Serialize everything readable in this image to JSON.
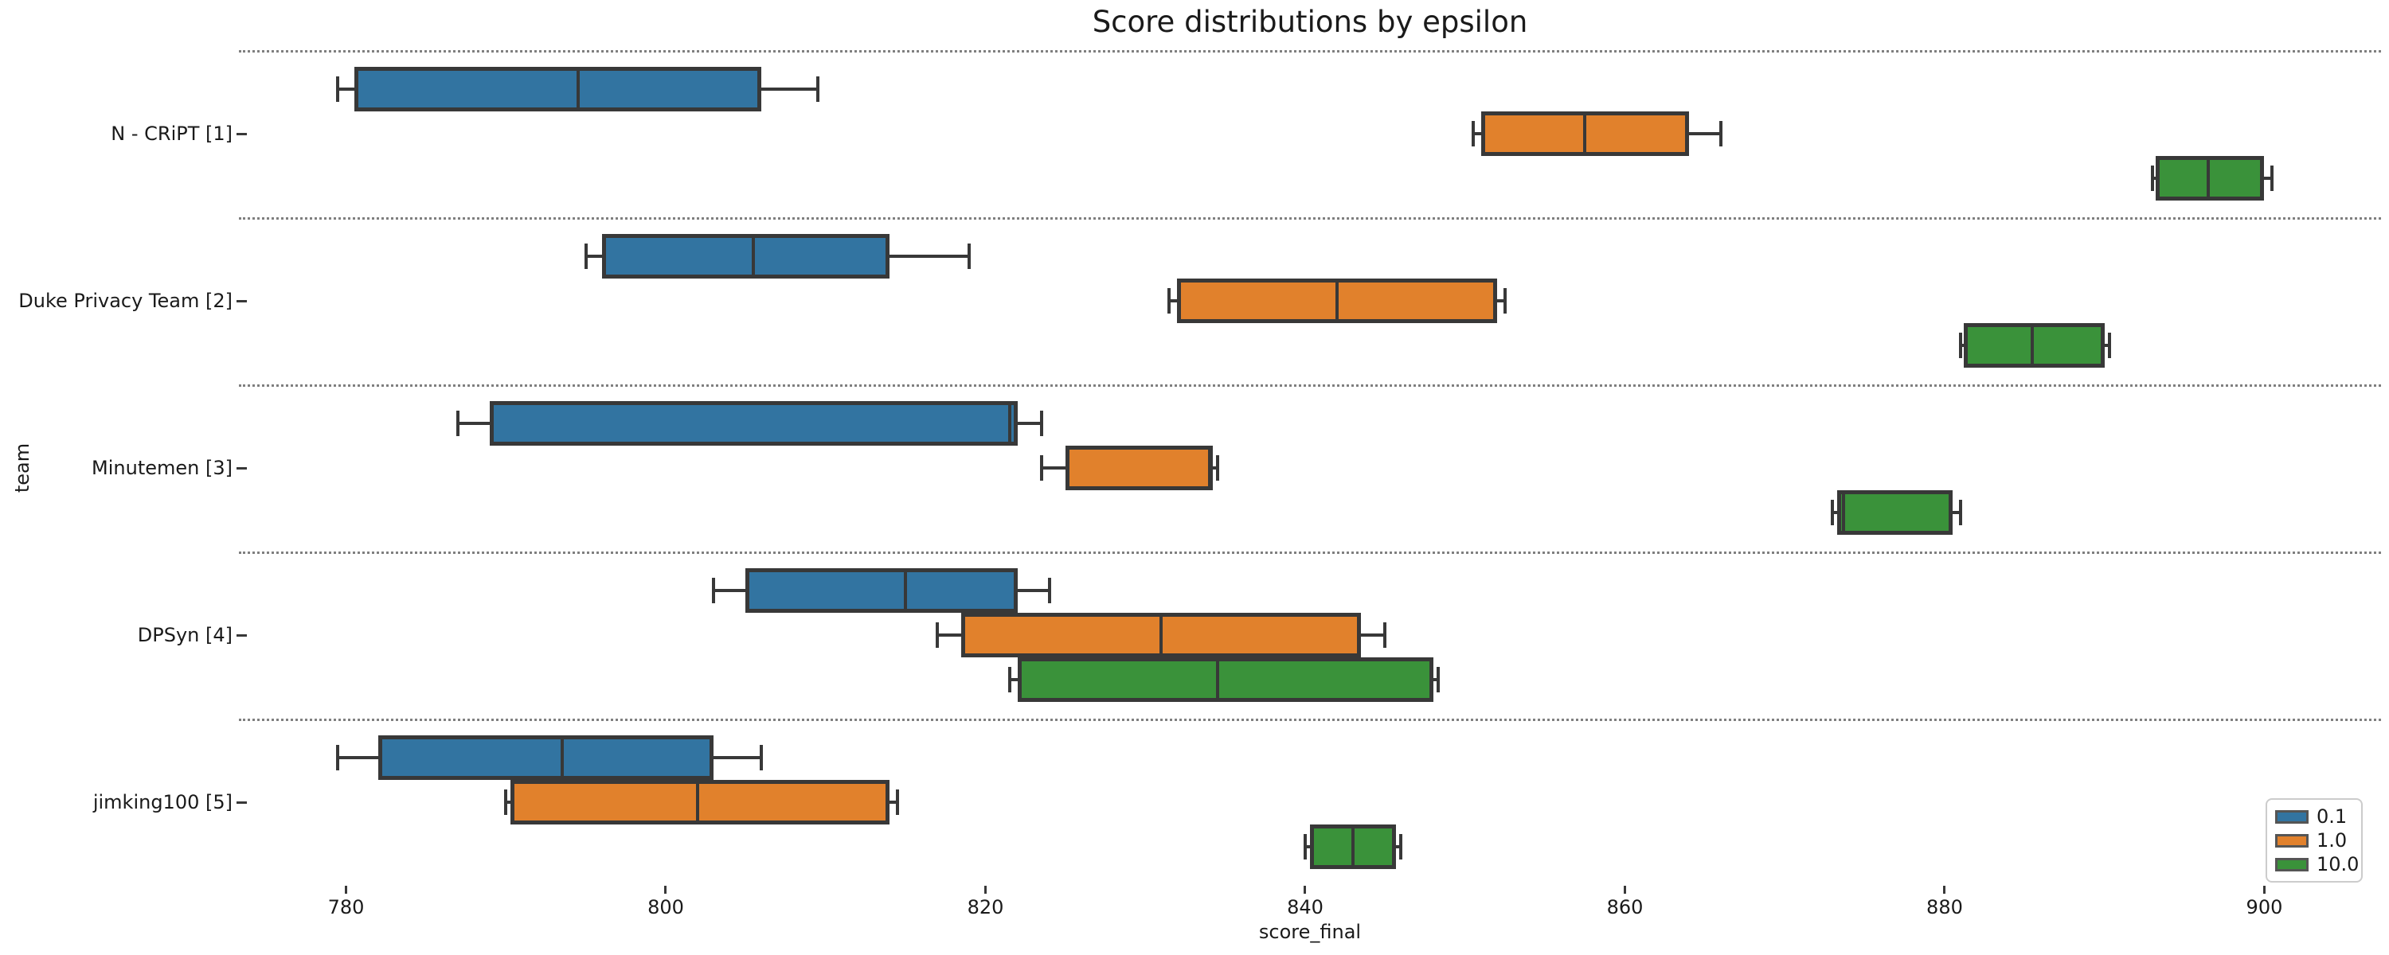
{
  "figure": {
    "title": "Score distributions by epsilon",
    "xlabel": "score_final",
    "ylabel": "team"
  },
  "chart_data": {
    "type": "boxplot",
    "orientation": "horizontal",
    "title": "Score distributions by epsilon",
    "xlabel": "score_final",
    "ylabel": "team",
    "xlim": [
      773.3,
      907.3
    ],
    "x_ticks": [
      780,
      800,
      820,
      840,
      860,
      880,
      900
    ],
    "grid": "dotted horizontal group separators",
    "legend_position": "lower right",
    "hue_variable": "epsilon",
    "series": [
      {
        "name": "0.1",
        "color": "#3274a1"
      },
      {
        "name": "1.0",
        "color": "#e1812c"
      },
      {
        "name": "10.0",
        "color": "#3a923a"
      }
    ],
    "teams": [
      {
        "team": "N - CRiPT [1]",
        "boxes": [
          {
            "epsilon": "0.1",
            "whislo": 779.5,
            "q1": 780.5,
            "med": 794.5,
            "q3": 806.0,
            "whishi": 809.5
          },
          {
            "epsilon": "1.0",
            "whislo": 850.5,
            "q1": 851.0,
            "med": 857.5,
            "q3": 864.0,
            "whishi": 866.0
          },
          {
            "epsilon": "10.0",
            "whislo": 893.0,
            "q1": 893.2,
            "med": 896.5,
            "q3": 900.0,
            "whishi": 900.5
          }
        ]
      },
      {
        "team": "Duke Privacy Team [2]",
        "boxes": [
          {
            "epsilon": "0.1",
            "whislo": 795.0,
            "q1": 796.0,
            "med": 805.5,
            "q3": 814.0,
            "whishi": 819.0
          },
          {
            "epsilon": "1.0",
            "whislo": 831.5,
            "q1": 832.0,
            "med": 842.0,
            "q3": 852.0,
            "whishi": 852.5
          },
          {
            "epsilon": "10.0",
            "whislo": 881.0,
            "q1": 881.2,
            "med": 885.5,
            "q3": 890.0,
            "whishi": 890.3
          }
        ]
      },
      {
        "team": "Minutemen [3]",
        "boxes": [
          {
            "epsilon": "0.1",
            "whislo": 787.0,
            "q1": 789.0,
            "med": 821.5,
            "q3": 822.0,
            "whishi": 823.5
          },
          {
            "epsilon": "1.0",
            "whislo": 823.5,
            "q1": 825.0,
            "med": 834.0,
            "q3": 834.2,
            "whishi": 834.5
          },
          {
            "epsilon": "10.0",
            "whislo": 873.0,
            "q1": 873.3,
            "med": 873.7,
            "q3": 880.5,
            "whishi": 881.0
          }
        ]
      },
      {
        "team": "DPSyn [4]",
        "boxes": [
          {
            "epsilon": "0.1",
            "whislo": 803.0,
            "q1": 805.0,
            "med": 815.0,
            "q3": 822.0,
            "whishi": 824.0
          },
          {
            "epsilon": "1.0",
            "whislo": 817.0,
            "q1": 818.5,
            "med": 831.0,
            "q3": 843.5,
            "whishi": 845.0
          },
          {
            "epsilon": "10.0",
            "whislo": 821.5,
            "q1": 822.0,
            "med": 834.5,
            "q3": 848.0,
            "whishi": 848.3
          }
        ]
      },
      {
        "team": "jimking100 [5]",
        "boxes": [
          {
            "epsilon": "0.1",
            "whislo": 779.5,
            "q1": 782.0,
            "med": 793.5,
            "q3": 803.0,
            "whishi": 806.0
          },
          {
            "epsilon": "1.0",
            "whislo": 790.0,
            "q1": 790.3,
            "med": 802.0,
            "q3": 814.0,
            "whishi": 814.5
          },
          {
            "epsilon": "10.0",
            "whislo": 840.0,
            "q1": 840.3,
            "med": 843.0,
            "q3": 845.7,
            "whishi": 846.0
          }
        ]
      }
    ]
  }
}
